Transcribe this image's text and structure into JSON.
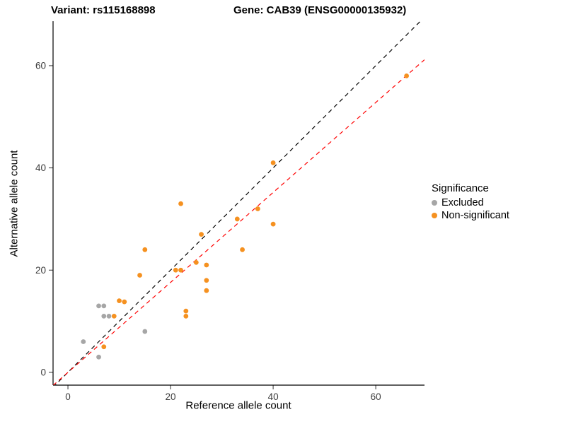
{
  "chart_data": {
    "type": "scatter",
    "titles": {
      "variant": "Variant: rs115168898",
      "gene": "Gene: CAB39 (ENSG00000135932)"
    },
    "xlabel": "Reference allele count",
    "ylabel": "Alternative allele count",
    "x_ticks": [
      0,
      20,
      40,
      60
    ],
    "y_ticks": [
      0,
      20,
      40,
      60
    ],
    "xlim": [
      -2.9,
      69.5
    ],
    "ylim": [
      -2.5,
      68.7
    ],
    "grid": false,
    "legend": {
      "title": "Significance",
      "position": "right",
      "items": [
        {
          "label": "Excluded",
          "color": "#A6A6A6"
        },
        {
          "label": "Non-significant",
          "color": "#F59120"
        }
      ]
    },
    "series": [
      {
        "name": "Excluded",
        "color": "#A6A6A6",
        "points": [
          [
            3,
            6
          ],
          [
            6,
            3
          ],
          [
            6,
            13
          ],
          [
            7,
            13
          ],
          [
            7,
            11
          ],
          [
            8,
            11
          ],
          [
            15,
            8
          ]
        ]
      },
      {
        "name": "Non-significant",
        "color": "#F59120",
        "points": [
          [
            7,
            5
          ],
          [
            9,
            11
          ],
          [
            10,
            14
          ],
          [
            11,
            13.8
          ],
          [
            14,
            19
          ],
          [
            15,
            24
          ],
          [
            21,
            20
          ],
          [
            22,
            20
          ],
          [
            22,
            33
          ],
          [
            23,
            12
          ],
          [
            23,
            11
          ],
          [
            25,
            21.5
          ],
          [
            26,
            27
          ],
          [
            27,
            21
          ],
          [
            27,
            18
          ],
          [
            27,
            16
          ],
          [
            33,
            30
          ],
          [
            34,
            24
          ],
          [
            37,
            32
          ],
          [
            40,
            41
          ],
          [
            40,
            29
          ],
          [
            66,
            58
          ]
        ]
      }
    ],
    "lines": [
      {
        "name": "identity",
        "color": "#000000",
        "dash": [
          6,
          5
        ],
        "slope": 1,
        "intercept": 0
      },
      {
        "name": "fit",
        "color": "#FF0000",
        "dash": [
          6,
          5
        ],
        "slope": 0.88,
        "intercept": 0
      }
    ]
  }
}
